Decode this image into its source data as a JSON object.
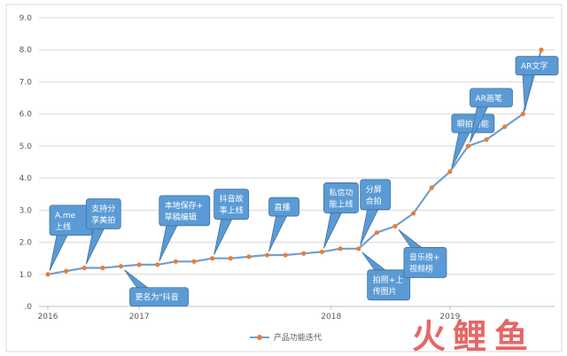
{
  "chart_data": {
    "type": "line",
    "series": [
      {
        "name": "产品功能迭代",
        "color": "#6fa0d0",
        "marker_color": "#ed7d31",
        "points": [
          [
            0,
            1.0
          ],
          [
            1,
            1.1
          ],
          [
            2,
            1.2
          ],
          [
            3,
            1.2
          ],
          [
            4,
            1.25
          ],
          [
            5,
            1.3
          ],
          [
            6,
            1.3
          ],
          [
            7,
            1.4
          ],
          [
            8,
            1.4
          ],
          [
            9,
            1.5
          ],
          [
            10,
            1.5
          ],
          [
            11,
            1.55
          ],
          [
            12,
            1.6
          ],
          [
            13,
            1.6
          ],
          [
            14,
            1.65
          ],
          [
            15,
            1.7
          ],
          [
            16,
            1.8
          ],
          [
            17,
            1.8
          ],
          [
            18,
            2.3
          ],
          [
            19,
            2.5
          ],
          [
            20,
            2.9
          ],
          [
            21,
            3.7
          ],
          [
            22,
            4.2
          ],
          [
            23,
            5.0
          ],
          [
            24,
            5.2
          ],
          [
            25,
            5.6
          ],
          [
            26,
            6.0
          ],
          [
            27,
            8.0
          ]
        ]
      }
    ],
    "y_ticks": [
      ".0",
      "1.0",
      "2.0",
      "3.0",
      "4.0",
      "5.0",
      "6.0",
      "7.0",
      "8.0",
      "9.0"
    ],
    "ylim": [
      0,
      9
    ],
    "x_ticks": [
      {
        "label": "2016",
        "x": 0
      },
      {
        "label": "2017",
        "x": 5
      },
      {
        "label": "2018",
        "x": 15.5
      },
      {
        "label": "2019",
        "x": 22
      }
    ],
    "grid": true,
    "legend_position": "bottom",
    "annotations": [
      {
        "text": [
          "A.me",
          "上线"
        ],
        "x": 0,
        "y": 1.0,
        "side": "above"
      },
      {
        "text": [
          "支持分",
          "享美拍"
        ],
        "x": 2,
        "y": 1.2,
        "side": "above"
      },
      {
        "text": [
          "更名为\"抖音"
        ],
        "x": 4,
        "y": 1.25,
        "side": "below"
      },
      {
        "text": [
          "本地保存+",
          "草稿编辑"
        ],
        "x": 6,
        "y": 1.3,
        "side": "above"
      },
      {
        "text": [
          "抖音故",
          "事上线"
        ],
        "x": 9,
        "y": 1.5,
        "side": "above"
      },
      {
        "text": [
          "直播"
        ],
        "x": 12,
        "y": 1.6,
        "side": "above"
      },
      {
        "text": [
          "私信功",
          "能上线"
        ],
        "x": 15,
        "y": 1.7,
        "side": "above"
      },
      {
        "text": [
          "分屏",
          "合拍"
        ],
        "x": 17,
        "y": 1.8,
        "side": "above"
      },
      {
        "text": [
          "拍照+上",
          "传图片"
        ],
        "x": 17,
        "y": 1.8,
        "side": "below"
      },
      {
        "text": [
          "音乐榜+",
          "视频榜"
        ],
        "x": 19,
        "y": 2.5,
        "side": "below"
      },
      {
        "text": [
          "瞬拍功能"
        ],
        "x": 22,
        "y": 4.2,
        "side": "above"
      },
      {
        "text": [
          "AR画笔"
        ],
        "x": 23,
        "y": 5.0,
        "side": "above"
      },
      {
        "text": [
          "AR文字"
        ],
        "x": 26,
        "y": 6.0,
        "side": "above"
      }
    ]
  },
  "watermark": {
    "chars": [
      "火",
      "鲤",
      "鱼"
    ],
    "color": "#e34b4b"
  }
}
